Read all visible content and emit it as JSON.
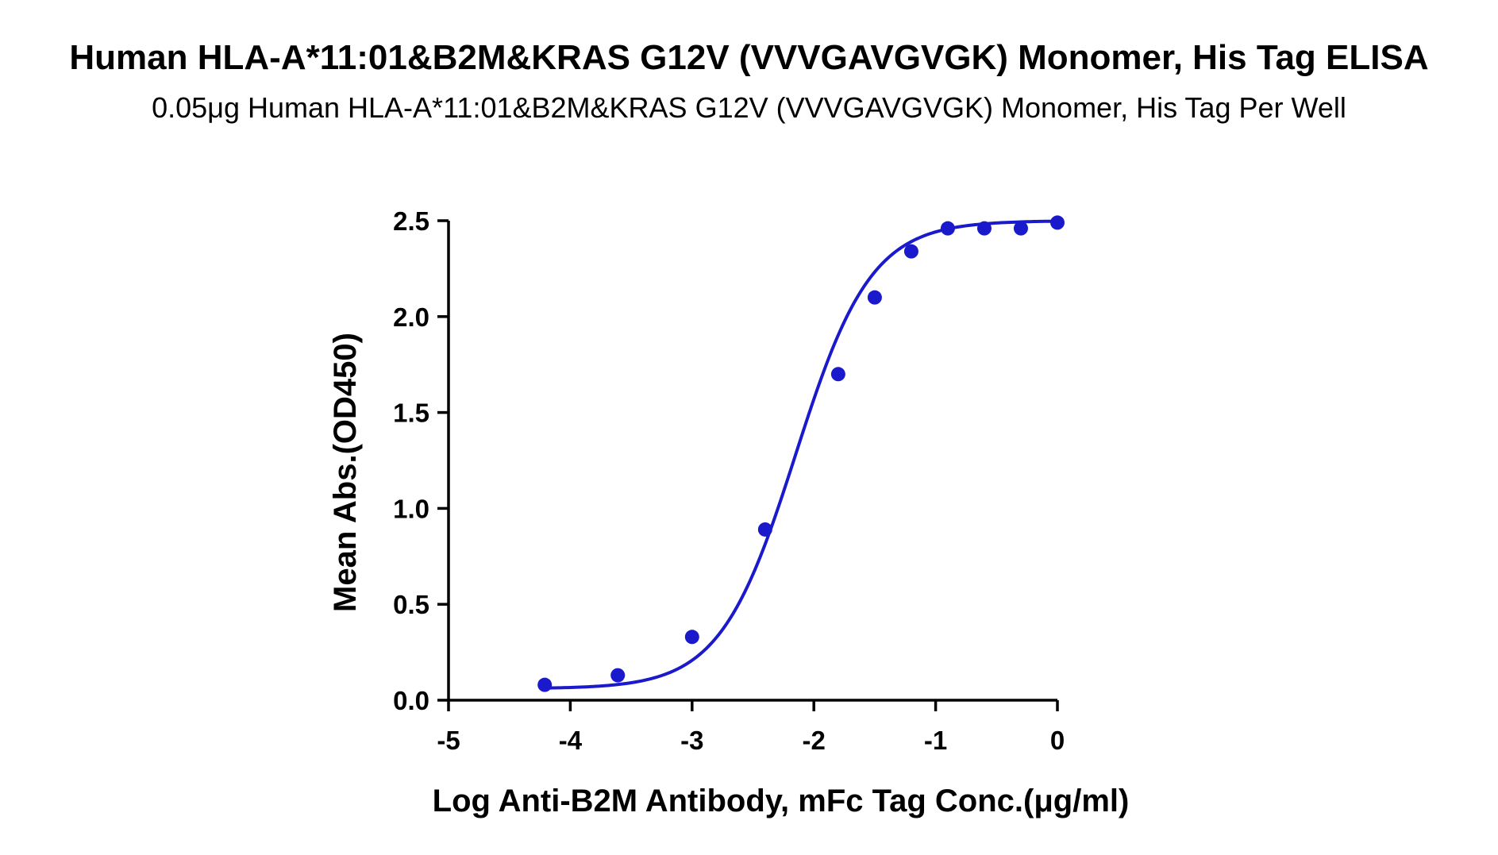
{
  "chart_data": {
    "type": "scatter",
    "title": "Human HLA-A*11:01&B2M&KRAS G12V (VVVGAVGVGK) Monomer, His Tag ELISA",
    "subtitle": "0.05μg Human HLA-A*11:01&B2M&KRAS G12V (VVVGAVGVGK) Monomer, His Tag Per Well",
    "xlabel": "Log Anti-B2M Antibody, mFc Tag Conc.(μg/ml)",
    "ylabel": "Mean Abs.(OD450)",
    "xlim": [
      -5,
      0
    ],
    "ylim": [
      0,
      2.5
    ],
    "x_ticks": [
      "-5",
      "-4",
      "-3",
      "-2",
      "-1",
      "0"
    ],
    "y_ticks": [
      "0.0",
      "0.5",
      "1.0",
      "1.5",
      "2.0",
      "2.5"
    ],
    "grid": false,
    "legend": false,
    "color": "#1a1acc",
    "series": [
      {
        "points": [
          {
            "x": -4.21,
            "y": 0.08
          },
          {
            "x": -3.61,
            "y": 0.13
          },
          {
            "x": -3.0,
            "y": 0.33
          },
          {
            "x": -2.4,
            "y": 0.89
          },
          {
            "x": -1.8,
            "y": 1.7
          },
          {
            "x": -1.5,
            "y": 2.1
          },
          {
            "x": -1.2,
            "y": 2.34
          },
          {
            "x": -0.9,
            "y": 2.46
          },
          {
            "x": -0.6,
            "y": 2.46
          },
          {
            "x": -0.3,
            "y": 2.46
          },
          {
            "x": 0.0,
            "y": 2.49
          }
        ],
        "fit": {
          "model": "4PL",
          "bottom": 0.06,
          "top": 2.5,
          "logEC50": -2.15,
          "hillslope": 1.4,
          "x_range": [
            -4.21,
            0.0
          ]
        }
      }
    ]
  }
}
